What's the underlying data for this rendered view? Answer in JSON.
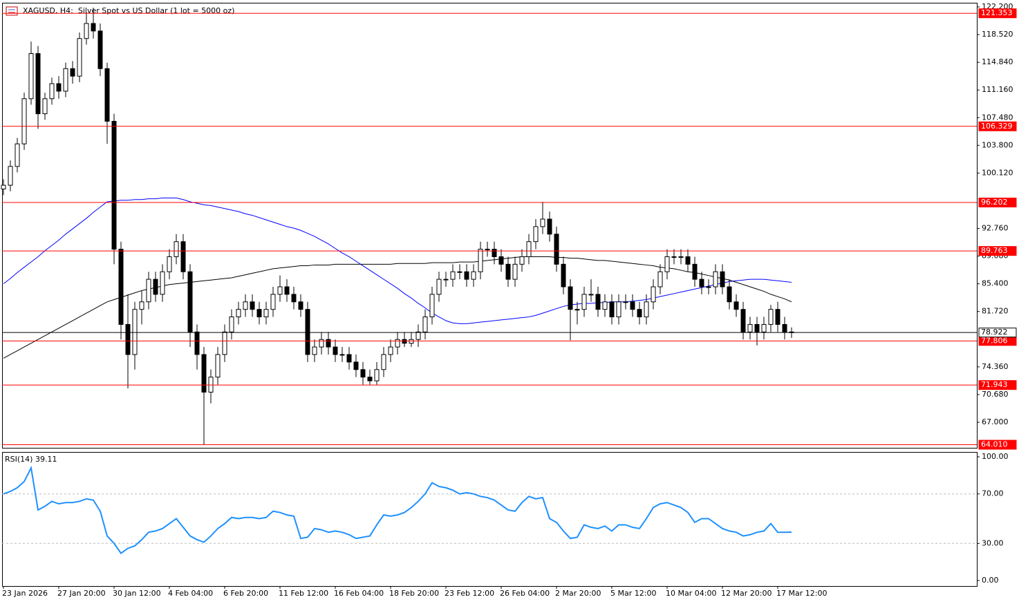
{
  "chart_data": [
    {
      "type": "candlestick",
      "title": "XAGUSD, H4:  Silver Spot vs US Dollar (1 lot = 5000 oz)",
      "categories": [
        "23 Jan 2026",
        null,
        null,
        null,
        null,
        null,
        null,
        null,
        "27 Jan 20:00",
        null,
        null,
        null,
        null,
        null,
        null,
        null,
        "30 Jan 12:00",
        null,
        null,
        null,
        null,
        null,
        null,
        null,
        "4 Feb 04:00",
        null,
        null,
        null,
        null,
        null,
        null,
        null,
        "6 Feb 20:00",
        null,
        null,
        null,
        null,
        null,
        null,
        null,
        "11 Feb 12:00",
        null,
        null,
        null,
        null,
        null,
        null,
        null,
        "16 Feb 04:00",
        null,
        null,
        null,
        null,
        null,
        null,
        null,
        "18 Feb 20:00",
        null,
        null,
        null,
        null,
        null,
        null,
        null,
        "23 Feb 12:00",
        null,
        null,
        null,
        null,
        null,
        null,
        null,
        "26 Feb 04:00",
        null,
        null,
        null,
        null,
        null,
        null,
        null,
        "2 Mar 20:00",
        null,
        null,
        null,
        null,
        null,
        null,
        null,
        "5 Mar 12:00",
        null,
        null,
        null,
        null,
        null,
        null,
        null,
        "10 Mar 04:00",
        null,
        null,
        null,
        null,
        null,
        null,
        null,
        "12 Mar 20:00",
        null,
        null,
        null,
        null,
        null,
        null,
        null,
        "17 Mar 12:00",
        null,
        null
      ],
      "ohlc": [
        [
          98,
          99.3,
          97.2,
          98.5
        ],
        [
          98.5,
          101.8,
          97.7,
          101
        ],
        [
          101,
          104.8,
          100.2,
          104
        ],
        [
          104,
          110.8,
          103.2,
          110
        ],
        [
          110,
          117.6,
          109.2,
          116
        ],
        [
          116,
          117,
          106,
          108
        ],
        [
          108,
          110.8,
          107.2,
          110
        ],
        [
          110,
          112.8,
          109.2,
          112
        ],
        [
          112,
          113,
          110,
          111
        ],
        [
          111,
          114.8,
          110.2,
          114
        ],
        [
          114,
          115,
          112,
          113
        ],
        [
          113,
          118.8,
          112.2,
          118
        ],
        [
          118,
          121.5,
          117.2,
          120
        ],
        [
          120,
          122.1,
          118,
          119
        ],
        [
          119,
          120,
          113,
          114
        ],
        [
          114,
          114.8,
          104,
          107
        ],
        [
          107,
          108,
          88,
          90
        ],
        [
          90,
          91,
          78,
          80
        ],
        [
          80,
          84,
          71.5,
          76
        ],
        [
          76,
          83,
          74,
          82
        ],
        [
          82,
          84.5,
          80,
          83
        ],
        [
          83,
          87,
          82,
          86
        ],
        [
          86,
          87,
          83,
          84
        ],
        [
          84,
          88,
          83,
          87
        ],
        [
          87,
          90,
          86,
          89
        ],
        [
          89,
          92,
          88,
          91
        ],
        [
          91,
          92,
          86,
          87
        ],
        [
          87,
          88,
          77,
          79
        ],
        [
          79,
          80,
          74,
          76
        ],
        [
          76,
          77,
          64,
          71
        ],
        [
          71,
          74,
          69.5,
          73
        ],
        [
          73,
          77,
          72,
          76
        ],
        [
          76,
          80,
          75,
          79
        ],
        [
          79,
          82,
          78,
          81
        ],
        [
          81,
          83,
          80,
          82
        ],
        [
          82,
          84,
          81,
          83
        ],
        [
          83,
          84,
          81,
          82
        ],
        [
          82,
          83,
          80,
          81
        ],
        [
          81,
          83,
          80,
          82
        ],
        [
          82,
          85,
          81,
          84
        ],
        [
          84,
          86.5,
          83,
          85
        ],
        [
          85,
          86,
          83,
          84
        ],
        [
          84,
          85,
          82,
          83
        ],
        [
          83,
          84,
          81,
          82
        ],
        [
          82,
          83,
          75,
          76
        ],
        [
          76,
          78,
          75,
          77
        ],
        [
          77,
          79,
          76,
          78
        ],
        [
          78,
          79,
          76,
          77
        ],
        [
          77,
          78,
          75,
          76
        ],
        [
          76,
          77,
          75,
          76
        ],
        [
          76,
          77,
          74,
          75
        ],
        [
          75,
          76,
          73,
          74
        ],
        [
          74,
          75,
          72,
          73
        ],
        [
          73,
          74,
          72,
          72.5
        ],
        [
          72.5,
          75,
          72,
          74
        ],
        [
          74,
          77,
          73,
          76
        ],
        [
          76,
          78,
          75,
          77
        ],
        [
          77,
          79,
          76,
          78
        ],
        [
          78,
          79,
          77,
          77.5
        ],
        [
          77.5,
          79,
          77,
          78
        ],
        [
          78,
          80,
          77,
          79
        ],
        [
          79,
          82,
          78,
          81
        ],
        [
          81,
          85,
          80,
          84
        ],
        [
          84,
          87,
          83,
          86
        ],
        [
          86,
          87,
          85,
          86
        ],
        [
          86,
          88,
          85,
          87
        ],
        [
          87,
          88,
          86,
          87
        ],
        [
          87,
          88,
          85,
          86
        ],
        [
          86,
          88,
          85,
          87
        ],
        [
          87,
          91,
          86,
          90
        ],
        [
          90,
          91,
          89,
          90
        ],
        [
          90,
          91,
          88,
          89
        ],
        [
          89,
          90,
          87,
          88
        ],
        [
          88,
          89,
          85,
          86
        ],
        [
          86,
          89,
          85,
          88
        ],
        [
          88,
          90,
          87,
          89
        ],
        [
          89,
          92,
          88,
          91
        ],
        [
          91,
          94,
          90,
          93
        ],
        [
          93,
          96.3,
          92,
          94
        ],
        [
          94,
          95,
          91,
          92
        ],
        [
          92,
          93,
          87,
          88
        ],
        [
          88,
          89,
          84,
          85
        ],
        [
          85,
          86,
          77.9,
          82
        ],
        [
          82,
          83,
          80,
          82
        ],
        [
          82,
          85,
          81,
          84
        ],
        [
          84,
          86,
          83,
          84
        ],
        [
          84,
          85,
          81,
          82
        ],
        [
          82,
          84,
          81,
          83
        ],
        [
          83,
          84,
          80,
          81
        ],
        [
          81,
          84,
          80,
          83
        ],
        [
          83,
          84,
          82,
          83
        ],
        [
          83,
          84,
          81,
          82
        ],
        [
          82,
          83,
          80,
          81
        ],
        [
          81,
          84,
          80,
          83
        ],
        [
          83,
          86,
          82,
          85
        ],
        [
          85,
          88,
          84,
          87
        ],
        [
          87,
          90,
          86,
          89
        ],
        [
          89,
          90,
          88,
          89
        ],
        [
          89,
          90,
          88,
          89
        ],
        [
          89,
          90,
          87,
          88
        ],
        [
          88,
          89,
          85,
          86
        ],
        [
          86,
          87,
          84,
          85
        ],
        [
          85,
          86,
          84,
          85
        ],
        [
          85,
          88,
          84,
          87
        ],
        [
          87,
          88,
          84,
          85
        ],
        [
          85,
          86,
          82,
          83
        ],
        [
          83,
          84,
          81,
          82
        ],
        [
          82,
          83,
          78,
          79
        ],
        [
          79,
          81,
          78,
          80
        ],
        [
          80,
          81,
          77.2,
          79
        ],
        [
          79,
          81,
          78,
          80
        ],
        [
          80,
          82.6,
          79,
          82
        ],
        [
          82,
          83,
          79,
          80
        ],
        [
          80,
          81,
          78,
          79
        ],
        [
          79,
          79.6,
          78.2,
          78.92
        ]
      ],
      "up_color": "#ffffff",
      "down_color": "#000000",
      "series": [
        {
          "color": "#0000ff",
          "values": [
            85.4,
            86.1,
            86.9,
            87.6,
            88.3,
            89.0,
            89.8,
            90.5,
            91.2,
            92.0,
            92.7,
            93.4,
            94.1,
            94.9,
            95.6,
            96.3,
            96.4,
            96.5,
            96.5,
            96.6,
            96.6,
            96.7,
            96.7,
            96.8,
            96.8,
            96.8,
            96.6,
            96.3,
            96.1,
            95.9,
            95.8,
            95.6,
            95.4,
            95.2,
            95.0,
            94.7,
            94.5,
            94.2,
            93.9,
            93.6,
            93.3,
            93.0,
            92.8,
            92.5,
            92.1,
            91.7,
            91.2,
            90.7,
            90.1,
            89.5,
            89.0,
            88.4,
            87.8,
            87.2,
            86.6,
            86.0,
            85.4,
            84.8,
            84.1,
            83.5,
            82.8,
            82.2,
            81.5,
            81.0,
            80.5,
            80.2,
            80.1,
            80.1,
            80.2,
            80.3,
            80.4,
            80.5,
            80.6,
            80.7,
            80.8,
            80.9,
            81.0,
            81.2,
            81.5,
            81.8,
            82.1,
            82.4,
            82.6,
            82.7,
            82.8,
            82.8,
            82.9,
            82.9,
            83.0,
            83.0,
            83.0,
            83.1,
            83.2,
            83.3,
            83.5,
            83.7,
            83.9,
            84.1,
            84.3,
            84.5,
            84.7,
            84.9,
            85.1,
            85.3,
            85.5,
            85.7,
            85.8,
            85.9,
            86.0,
            86.0,
            86.0,
            85.9,
            85.8,
            85.7,
            85.6
          ]
        },
        {
          "color": "#000000",
          "values": [
            75.5,
            76.0,
            76.5,
            77.0,
            77.5,
            78.0,
            78.5,
            79.0,
            79.5,
            80.0,
            80.5,
            81.0,
            81.5,
            82.0,
            82.5,
            83.0,
            83.3,
            83.6,
            83.9,
            84.2,
            84.5,
            84.7,
            84.9,
            85.1,
            85.3,
            85.4,
            85.5,
            85.6,
            85.7,
            85.8,
            85.9,
            86.0,
            86.1,
            86.2,
            86.4,
            86.6,
            86.8,
            87.0,
            87.2,
            87.4,
            87.5,
            87.6,
            87.7,
            87.8,
            87.8,
            87.9,
            87.9,
            87.9,
            88.0,
            88.0,
            88.0,
            88.0,
            88.0,
            88.0,
            88.0,
            88.0,
            88.0,
            88.1,
            88.1,
            88.1,
            88.1,
            88.1,
            88.2,
            88.2,
            88.2,
            88.2,
            88.3,
            88.3,
            88.3,
            88.4,
            88.5,
            88.6,
            88.7,
            88.8,
            88.9,
            89.0,
            89.0,
            89.0,
            89.0,
            89.0,
            88.9,
            88.9,
            88.8,
            88.8,
            88.7,
            88.6,
            88.5,
            88.5,
            88.4,
            88.3,
            88.2,
            88.1,
            88.0,
            87.9,
            87.8,
            87.6,
            87.5,
            87.4,
            87.2,
            87.0,
            86.9,
            86.7,
            86.5,
            86.3,
            86.1,
            85.9,
            85.6,
            85.3,
            85.0,
            84.7,
            84.4,
            84.0,
            83.7,
            83.4,
            83.0
          ]
        }
      ],
      "hlines": [
        {
          "value": 121.353,
          "label": "121.353",
          "color": "#ff0000"
        },
        {
          "value": 106.329,
          "label": "106.329",
          "color": "#ff0000"
        },
        {
          "value": 96.202,
          "label": "96.202",
          "color": "#ff0000"
        },
        {
          "value": 89.763,
          "label": "89.763",
          "color": "#ff0000"
        },
        {
          "value": 77.806,
          "label": "77.806",
          "color": "#ff0000"
        },
        {
          "value": 71.943,
          "label": "71.943",
          "color": "#ff0000"
        },
        {
          "value": 64.01,
          "label": "64.010",
          "color": "#ff0000"
        }
      ],
      "price_line": {
        "value": 78.922,
        "label": "78.922",
        "color": "#000000"
      },
      "ylim": [
        63.6,
        122.66
      ],
      "yticks": [
        {
          "value": 122.2,
          "label": "122.200"
        },
        {
          "value": 118.52,
          "label": "118.520"
        },
        {
          "value": 114.84,
          "label": "114.840"
        },
        {
          "value": 111.16,
          "label": "111.160"
        },
        {
          "value": 107.48,
          "label": "107.480"
        },
        {
          "value": 103.8,
          "label": "103.800"
        },
        {
          "value": 100.12,
          "label": "100.120"
        },
        {
          "value": 92.76,
          "label": "92.760"
        },
        {
          "value": 89.08,
          "label": "89.080"
        },
        {
          "value": 85.4,
          "label": "85.400"
        },
        {
          "value": 81.72,
          "label": "81.720"
        },
        {
          "value": 74.36,
          "label": "74.360"
        },
        {
          "value": 70.68,
          "label": "70.680"
        },
        {
          "value": 67,
          "label": "67.000"
        }
      ]
    },
    {
      "type": "line",
      "title": "RSI(14) 39.11",
      "color": "#1e90ff",
      "values": [
        70,
        72,
        75,
        80,
        91,
        57,
        60,
        64,
        62,
        63,
        63,
        64,
        66,
        65,
        56,
        36,
        30,
        22,
        26,
        28,
        33,
        39,
        40,
        42,
        46,
        50,
        43,
        36,
        33,
        31,
        36,
        42,
        46,
        51,
        50,
        51,
        51,
        50,
        51,
        56,
        55,
        53,
        52,
        34,
        35,
        42,
        41,
        39,
        40,
        39,
        37,
        34,
        35,
        36,
        45,
        53,
        52,
        53,
        55,
        59,
        64,
        70,
        79,
        76,
        75,
        73,
        70,
        71,
        70,
        68,
        67,
        65,
        61,
        57,
        56,
        63,
        68,
        66,
        67,
        50,
        47,
        40,
        34,
        35,
        45,
        43,
        42,
        44,
        40,
        45,
        45,
        43,
        42,
        50,
        59,
        62,
        63,
        61,
        59,
        55,
        47,
        50,
        50,
        46,
        42,
        40,
        39,
        36,
        37,
        39,
        40,
        46,
        39,
        39,
        39.11
      ],
      "ylim": [
        -4.47,
        103.35
      ],
      "yticks": [
        {
          "value": 100,
          "label": "100.00"
        },
        {
          "value": 70,
          "label": "70.00"
        },
        {
          "value": 30,
          "label": "30.00"
        },
        {
          "value": 0,
          "label": "0.00"
        }
      ]
    }
  ]
}
